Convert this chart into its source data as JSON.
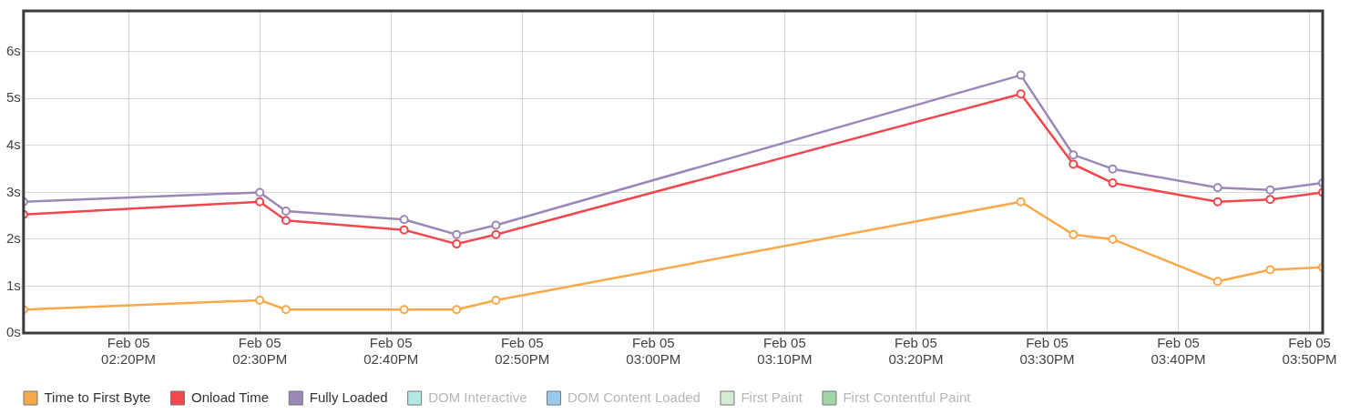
{
  "chart_data": {
    "type": "line",
    "x": [
      "--02-05T14:12",
      "--02-05T14:30",
      "--02-05T14:32",
      "--02-05T14:41",
      "--02-05T14:45",
      "--02-05T14:48",
      "--02-05T15:28",
      "--02-05T15:32",
      "--02-05T15:35",
      "--02-05T15:43",
      "--02-05T15:47",
      "--02-05T15:51"
    ],
    "series": [
      {
        "name": "Time to First Byte",
        "color": "#f9a84a",
        "values": [
          0.5,
          0.7,
          0.5,
          0.5,
          0.5,
          0.7,
          2.8,
          2.1,
          2.0,
          1.1,
          1.35,
          1.4
        ]
      },
      {
        "name": "Onload Time",
        "color": "#f2474f",
        "values": [
          2.53,
          2.8,
          2.4,
          2.2,
          1.9,
          2.1,
          5.1,
          3.6,
          3.2,
          2.8,
          2.85,
          3.0
        ]
      },
      {
        "name": "Fully Loaded",
        "color": "#9a88b8",
        "values": [
          2.8,
          3.0,
          2.6,
          2.42,
          2.1,
          2.3,
          5.5,
          3.8,
          3.5,
          3.1,
          3.05,
          3.2
        ]
      },
      {
        "name": "DOM Interactive",
        "color": "#b5e7e5",
        "values": [
          null,
          null,
          null,
          null,
          null,
          null,
          null,
          null,
          null,
          null,
          null,
          null
        ]
      },
      {
        "name": "DOM Content Loaded",
        "color": "#9cc8ed",
        "values": [
          null,
          null,
          null,
          null,
          null,
          null,
          null,
          null,
          null,
          null,
          null,
          null
        ]
      },
      {
        "name": "First Paint",
        "color": "#d3ead3",
        "values": [
          null,
          null,
          null,
          null,
          null,
          null,
          null,
          null,
          null,
          null,
          null,
          null
        ]
      },
      {
        "name": "First Contentful Paint",
        "color": "#a0d6a5",
        "values": [
          null,
          null,
          null,
          null,
          null,
          null,
          null,
          null,
          null,
          null,
          null,
          null
        ]
      }
    ],
    "xlim": [
      "--02-05T14:12",
      "--02-05T15:51"
    ],
    "xticks": [
      {
        "value": "--02-05T14:20",
        "label": "Feb 05\n02:20PM"
      },
      {
        "value": "--02-05T14:30",
        "label": "Feb 05\n02:30PM"
      },
      {
        "value": "--02-05T14:40",
        "label": "Feb 05\n02:40PM"
      },
      {
        "value": "--02-05T14:50",
        "label": "Feb 05\n02:50PM"
      },
      {
        "value": "--02-05T15:00",
        "label": "Feb 05\n03:00PM"
      },
      {
        "value": "--02-05T15:10",
        "label": "Feb 05\n03:10PM"
      },
      {
        "value": "--02-05T15:20",
        "label": "Feb 05\n03:20PM"
      },
      {
        "value": "--02-05T15:30",
        "label": "Feb 05\n03:30PM"
      },
      {
        "value": "--02-05T15:40",
        "label": "Feb 05\n03:40PM"
      },
      {
        "value": "--02-05T15:50",
        "label": "Feb 05\n03:50PM"
      }
    ],
    "ylim": [
      0,
      6.87
    ],
    "yticks": [
      {
        "value": 0,
        "label": "0s"
      },
      {
        "value": 1,
        "label": "1s"
      },
      {
        "value": 2,
        "label": "2s"
      },
      {
        "value": 3,
        "label": "3s"
      },
      {
        "value": 4,
        "label": "4s"
      },
      {
        "value": 5,
        "label": "5s"
      },
      {
        "value": 6,
        "label": "6s"
      }
    ],
    "grid": true,
    "legend": "bottom",
    "marker": "circle",
    "line_style": "solid"
  }
}
